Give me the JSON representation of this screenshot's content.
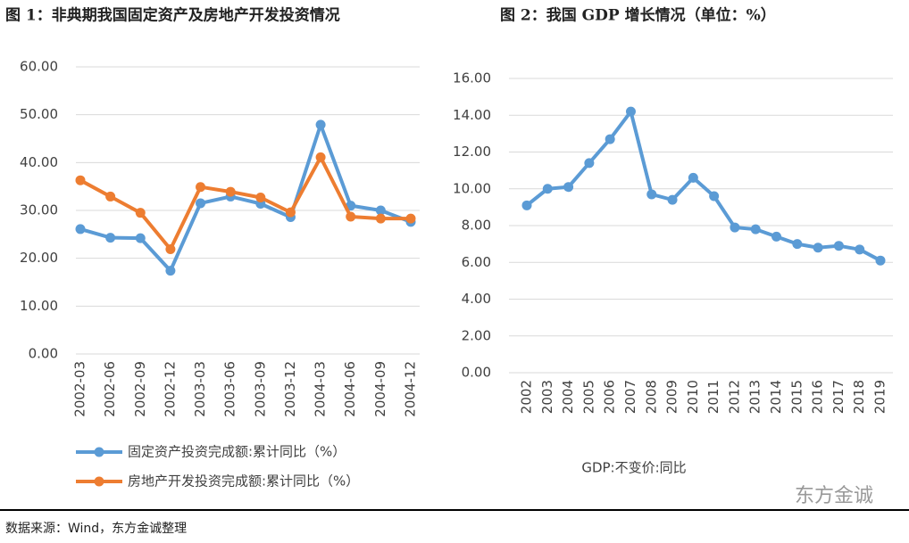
{
  "chart_data": [
    {
      "type": "line",
      "title": "图 1：非典期我国固定资产及房地产开发投资情况",
      "categories": [
        "2002-03",
        "2002-06",
        "2002-09",
        "2002-12",
        "2003-03",
        "2003-06",
        "2003-09",
        "2003-12",
        "2004-03",
        "2004-06",
        "2004-09",
        "2004-12"
      ],
      "series": [
        {
          "name": "固定资产投资完成额:累计同比（%）",
          "color": "#5b9bd5",
          "values": [
            26.1,
            24.3,
            24.2,
            17.4,
            31.5,
            32.9,
            31.4,
            28.6,
            47.9,
            31.0,
            30.0,
            27.6
          ]
        },
        {
          "name": "房地产开发投资完成额:累计同比（%）",
          "color": "#ed7d31",
          "values": [
            36.3,
            32.9,
            29.5,
            21.9,
            34.9,
            33.9,
            32.7,
            29.6,
            41.1,
            28.7,
            28.3,
            28.3
          ]
        }
      ],
      "ylim": [
        0,
        60
      ],
      "yticks": [
        {
          "value": 0,
          "label": "0.00"
        },
        {
          "value": 10,
          "label": "10.00"
        },
        {
          "value": 20,
          "label": "20.00"
        },
        {
          "value": 30,
          "label": "30.00"
        },
        {
          "value": 40,
          "label": "40.00"
        },
        {
          "value": 50,
          "label": "50.00"
        },
        {
          "value": 60,
          "label": "60.00"
        }
      ],
      "grid": true
    },
    {
      "type": "line",
      "title": "图 2：我国 GDP 增长情况（单位：%）",
      "categories": [
        "2002",
        "2003",
        "2004",
        "2005",
        "2006",
        "2007",
        "2008",
        "2009",
        "2010",
        "2011",
        "2012",
        "2013",
        "2014",
        "2015",
        "2016",
        "2017",
        "2018",
        "2019"
      ],
      "series": [
        {
          "name": "GDP:不变价:同比",
          "color": "#5b9bd5",
          "values": [
            9.1,
            10.0,
            10.1,
            11.4,
            12.7,
            14.2,
            9.7,
            9.4,
            10.6,
            9.6,
            7.9,
            7.8,
            7.4,
            7.0,
            6.8,
            6.9,
            6.7,
            6.1
          ]
        }
      ],
      "ylim": [
        0,
        16
      ],
      "yticks": [
        {
          "value": 0,
          "label": "0.00"
        },
        {
          "value": 2,
          "label": "2.00"
        },
        {
          "value": 4,
          "label": "4.00"
        },
        {
          "value": 6,
          "label": "6.00"
        },
        {
          "value": 8,
          "label": "8.00"
        },
        {
          "value": 10,
          "label": "10.00"
        },
        {
          "value": 12,
          "label": "12.00"
        },
        {
          "value": 14,
          "label": "14.00"
        },
        {
          "value": 16,
          "label": "16.00"
        }
      ],
      "grid": true
    }
  ],
  "watermark": "东方金诚",
  "source": "数据来源：Wind，东方金诚整理"
}
